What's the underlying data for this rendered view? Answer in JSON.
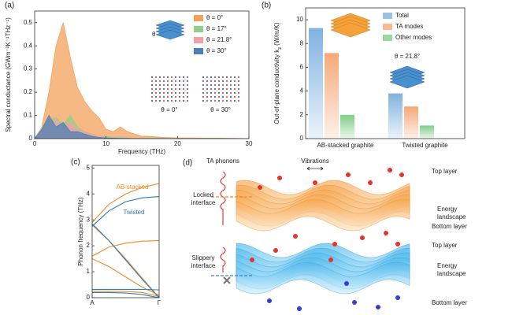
{
  "chart_data": [
    {
      "type": "area",
      "panel_label": "(a)",
      "xlabel": "Frequency (THz)",
      "ylabel": "Spectral conductance (GWm⁻²K⁻¹THz⁻¹)",
      "x": [
        0,
        1,
        2,
        3,
        4,
        5,
        6,
        7,
        8,
        9,
        10,
        11,
        12,
        13,
        14,
        15,
        16,
        18,
        20,
        22,
        24,
        26,
        28,
        30
      ],
      "xlim": [
        0,
        30
      ],
      "xticks": [
        0,
        10,
        20,
        30
      ],
      "ylim": [
        0,
        0.55
      ],
      "yticks": [
        0,
        0.1,
        0.2,
        0.3,
        0.4,
        0.5
      ],
      "series": [
        {
          "name": "θ = 0°",
          "color": "#f4a259",
          "values": [
            0,
            0.05,
            0.2,
            0.4,
            0.5,
            0.35,
            0.22,
            0.16,
            0.12,
            0.09,
            0.04,
            0.03,
            0.05,
            0.03,
            0.02,
            0.01,
            0.01,
            0.005,
            0.003,
            0.003,
            0.002,
            0.002,
            0.001,
            0
          ]
        },
        {
          "name": "θ = 17°",
          "color": "#8fd18a",
          "values": [
            0,
            0.04,
            0.08,
            0.09,
            0.06,
            0.1,
            0.05,
            0.03,
            0.02,
            0.01,
            0.01,
            0.005,
            0.005,
            0.003,
            0.002,
            0.001,
            0.001,
            0.001,
            0,
            0,
            0,
            0,
            0,
            0
          ]
        },
        {
          "name": "θ = 21.8°",
          "color": "#f2a0a8",
          "values": [
            0,
            0.03,
            0.07,
            0.08,
            0.05,
            0.07,
            0.04,
            0.03,
            0.02,
            0.01,
            0.005,
            0.003,
            0.003,
            0.002,
            0.001,
            0.001,
            0,
            0,
            0,
            0,
            0,
            0,
            0,
            0
          ]
        },
        {
          "name": "θ = 30°",
          "color": "#4d7fb8",
          "values": [
            0,
            0.04,
            0.1,
            0.05,
            0.07,
            0.03,
            0.03,
            0.02,
            0.01,
            0.005,
            0.003,
            0.002,
            0.001,
            0.001,
            0,
            0,
            0,
            0,
            0,
            0,
            0,
            0,
            0,
            0
          ]
        }
      ],
      "inset_labels": [
        "θ",
        "θ = 0°",
        "θ = 30°"
      ]
    },
    {
      "type": "bar",
      "panel_label": "(b)",
      "ylabel": "Out-of-plane conductivity k",
      "ylabel_sub": "z",
      "ylabel_unit": "(W/m/K)",
      "categories": [
        "AB-stacked graphite",
        "Twisted graphite"
      ],
      "ylim": [
        0,
        11
      ],
      "yticks": [
        0,
        2,
        4,
        6,
        8,
        10
      ],
      "series": [
        {
          "name": "Total",
          "color": "#7fb2e0",
          "values": [
            9.3,
            3.8
          ]
        },
        {
          "name": "TA modes",
          "color": "#f6a878",
          "values": [
            7.2,
            2.7
          ]
        },
        {
          "name": "Other modes",
          "color": "#7fce86",
          "values": [
            2.0,
            1.1
          ]
        }
      ],
      "annotation": "θ = 21.8°"
    },
    {
      "type": "line",
      "panel_label": "(c)",
      "ylabel": "Phonon frequency (THz)",
      "x": [
        0,
        0.25,
        0.5,
        0.75,
        1
      ],
      "xlim": [
        0,
        1
      ],
      "xticks": [
        {
          "value": 0,
          "label": "A"
        },
        {
          "value": 1,
          "label": "Γ"
        }
      ],
      "ylim": [
        0,
        5.1
      ],
      "yticks": [
        0,
        1,
        2,
        3,
        4,
        5
      ],
      "series": [
        {
          "name": "AB-stacked",
          "color": "#f08a24",
          "branches": [
            [
              2.9,
              3.6,
              4.0,
              4.25,
              4.4
            ],
            [
              2.8,
              2.2,
              1.5,
              0.75,
              0
            ],
            [
              1.6,
              1.95,
              2.1,
              2.18,
              2.2
            ],
            [
              1.5,
              1.2,
              0.8,
              0.4,
              0.1
            ],
            [
              0.25,
              0.25,
              0.24,
              0.2,
              0.05
            ]
          ]
        },
        {
          "name": "Twisted",
          "color": "#2f78b7",
          "branches": [
            [
              2.75,
              3.35,
              3.7,
              3.85,
              3.9
            ],
            [
              2.85,
              2.2,
              1.45,
              0.7,
              0
            ],
            [
              0.32,
              0.32,
              0.32,
              0.32,
              0.3
            ],
            [
              0.2,
              0.2,
              0.18,
              0.12,
              0
            ]
          ]
        }
      ]
    }
  ],
  "diagram": {
    "panel_label": "(d)",
    "ta_phonons": "TA phonons",
    "vibrations": "Vibrations",
    "upper": {
      "top": "Top layer",
      "interface": [
        "Locked",
        "interface"
      ],
      "landscape": [
        "Energy",
        "landscape"
      ],
      "bottom": "Bottom layer"
    },
    "lower": {
      "top": "Top layer",
      "interface": [
        "Slippery",
        "interface"
      ],
      "landscape": [
        "Energy",
        "landscape"
      ],
      "bottom": "Bottom layer"
    }
  }
}
